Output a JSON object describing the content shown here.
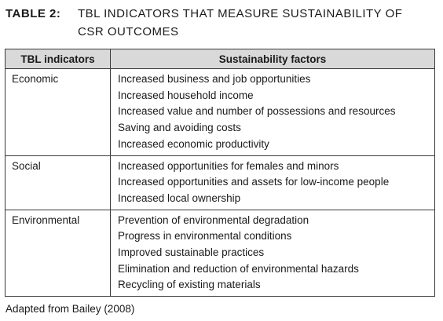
{
  "caption": {
    "label": "TABLE 2:",
    "title_line1": "TBL INDICATORS THAT MEASURE SUSTAINABILITY OF",
    "title_line2": "CSR OUTCOMES"
  },
  "table": {
    "headers": [
      "TBL indicators",
      "Sustainability factors"
    ],
    "rows": [
      {
        "indicator": "Economic",
        "factors": [
          "Increased business and job opportunities",
          "Increased household income",
          "Increased value and number of possessions and resources",
          "Saving and avoiding costs",
          "Increased economic productivity"
        ]
      },
      {
        "indicator": "Social",
        "factors": [
          "Increased opportunities for females and minors",
          "Increased opportunities and assets for low-income people",
          "Increased local ownership"
        ]
      },
      {
        "indicator": "Environmental",
        "factors": [
          "Prevention of environmental degradation",
          "Progress in environmental conditions",
          "Improved sustainable practices",
          "Elimination and reduction of environmental hazards",
          "Recycling of existing materials"
        ]
      }
    ]
  },
  "source": "Adapted from Bailey (2008)",
  "colors": {
    "header_bg": "#d9d9d9",
    "border": "#3a3a3a",
    "text": "#1a1a1a"
  }
}
